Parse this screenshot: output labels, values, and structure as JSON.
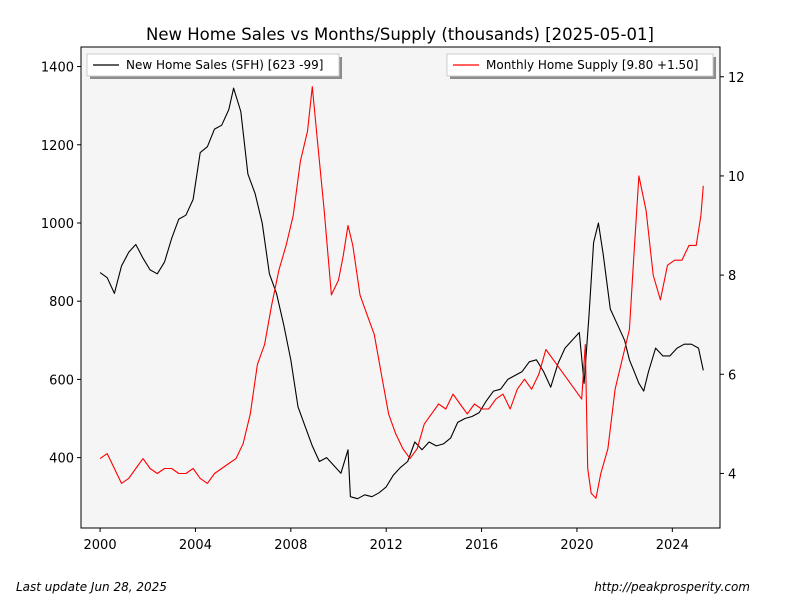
{
  "chart_data": {
    "type": "line",
    "title": "New Home Sales vs Months/Supply (thousands) [2025-05-01]",
    "xlim": [
      1999.2,
      2026.0
    ],
    "x_ticks": [
      2000,
      2004,
      2008,
      2012,
      2016,
      2020,
      2024
    ],
    "x_tick_labels": [
      "2000",
      "2004",
      "2008",
      "2012",
      "2016",
      "2020",
      "2024"
    ],
    "y_left": {
      "ylim": [
        220,
        1450
      ],
      "ticks": [
        400,
        600,
        800,
        1000,
        1200,
        1400
      ],
      "tick_labels": [
        "400",
        "600",
        "800",
        "1000",
        "1200",
        "1400"
      ]
    },
    "y_right": {
      "ylim": [
        2.9,
        12.6
      ],
      "ticks": [
        4,
        6,
        8,
        10,
        12
      ],
      "tick_labels": [
        "4",
        "6",
        "8",
        "10",
        "12"
      ]
    },
    "grid": false,
    "background": "#f5f5f5",
    "series": [
      {
        "name": "New Home Sales (SFH) [623 -99]",
        "axis": "left",
        "color": "#000000",
        "points": [
          [
            2000.0,
            873
          ],
          [
            2000.3,
            860
          ],
          [
            2000.6,
            820
          ],
          [
            2000.9,
            890
          ],
          [
            2001.2,
            925
          ],
          [
            2001.5,
            945
          ],
          [
            2001.8,
            910
          ],
          [
            2002.1,
            880
          ],
          [
            2002.4,
            870
          ],
          [
            2002.7,
            900
          ],
          [
            2003.0,
            960
          ],
          [
            2003.3,
            1010
          ],
          [
            2003.6,
            1020
          ],
          [
            2003.9,
            1060
          ],
          [
            2004.2,
            1180
          ],
          [
            2004.5,
            1195
          ],
          [
            2004.8,
            1240
          ],
          [
            2005.1,
            1250
          ],
          [
            2005.4,
            1290
          ],
          [
            2005.6,
            1345
          ],
          [
            2005.9,
            1285
          ],
          [
            2006.2,
            1125
          ],
          [
            2006.5,
            1075
          ],
          [
            2006.8,
            1000
          ],
          [
            2007.1,
            870
          ],
          [
            2007.4,
            820
          ],
          [
            2007.7,
            740
          ],
          [
            2008.0,
            650
          ],
          [
            2008.3,
            530
          ],
          [
            2008.6,
            480
          ],
          [
            2008.9,
            430
          ],
          [
            2009.2,
            390
          ],
          [
            2009.5,
            400
          ],
          [
            2009.8,
            380
          ],
          [
            2010.1,
            360
          ],
          [
            2010.4,
            420
          ],
          [
            2010.5,
            300
          ],
          [
            2010.8,
            295
          ],
          [
            2011.1,
            305
          ],
          [
            2011.4,
            300
          ],
          [
            2011.7,
            310
          ],
          [
            2012.0,
            325
          ],
          [
            2012.3,
            355
          ],
          [
            2012.6,
            375
          ],
          [
            2012.9,
            390
          ],
          [
            2013.2,
            440
          ],
          [
            2013.5,
            420
          ],
          [
            2013.8,
            440
          ],
          [
            2014.1,
            430
          ],
          [
            2014.4,
            435
          ],
          [
            2014.7,
            450
          ],
          [
            2015.0,
            490
          ],
          [
            2015.3,
            500
          ],
          [
            2015.6,
            505
          ],
          [
            2015.9,
            515
          ],
          [
            2016.2,
            545
          ],
          [
            2016.5,
            570
          ],
          [
            2016.8,
            575
          ],
          [
            2017.1,
            600
          ],
          [
            2017.4,
            610
          ],
          [
            2017.7,
            620
          ],
          [
            2018.0,
            645
          ],
          [
            2018.3,
            650
          ],
          [
            2018.6,
            620
          ],
          [
            2018.9,
            580
          ],
          [
            2019.2,
            640
          ],
          [
            2019.5,
            680
          ],
          [
            2019.8,
            700
          ],
          [
            2020.1,
            720
          ],
          [
            2020.3,
            590
          ],
          [
            2020.5,
            760
          ],
          [
            2020.7,
            950
          ],
          [
            2020.9,
            1000
          ],
          [
            2021.1,
            920
          ],
          [
            2021.4,
            780
          ],
          [
            2021.7,
            740
          ],
          [
            2022.0,
            700
          ],
          [
            2022.2,
            650
          ],
          [
            2022.4,
            620
          ],
          [
            2022.6,
            590
          ],
          [
            2022.8,
            570
          ],
          [
            2023.0,
            620
          ],
          [
            2023.3,
            680
          ],
          [
            2023.6,
            660
          ],
          [
            2023.9,
            660
          ],
          [
            2024.2,
            680
          ],
          [
            2024.5,
            690
          ],
          [
            2024.8,
            690
          ],
          [
            2025.1,
            680
          ],
          [
            2025.3,
            623
          ]
        ]
      },
      {
        "name": "Monthly Home Supply [9.80 +1.50]",
        "axis": "right",
        "color": "#ff0000",
        "points": [
          [
            2000.0,
            4.3
          ],
          [
            2000.3,
            4.4
          ],
          [
            2000.6,
            4.1
          ],
          [
            2000.9,
            3.8
          ],
          [
            2001.2,
            3.9
          ],
          [
            2001.5,
            4.1
          ],
          [
            2001.8,
            4.3
          ],
          [
            2002.1,
            4.1
          ],
          [
            2002.4,
            4.0
          ],
          [
            2002.7,
            4.1
          ],
          [
            2003.0,
            4.1
          ],
          [
            2003.3,
            4.0
          ],
          [
            2003.6,
            4.0
          ],
          [
            2003.9,
            4.1
          ],
          [
            2004.2,
            3.9
          ],
          [
            2004.5,
            3.8
          ],
          [
            2004.8,
            4.0
          ],
          [
            2005.1,
            4.1
          ],
          [
            2005.4,
            4.2
          ],
          [
            2005.7,
            4.3
          ],
          [
            2006.0,
            4.6
          ],
          [
            2006.3,
            5.2
          ],
          [
            2006.6,
            6.2
          ],
          [
            2006.9,
            6.6
          ],
          [
            2007.2,
            7.4
          ],
          [
            2007.5,
            8.1
          ],
          [
            2007.8,
            8.6
          ],
          [
            2008.1,
            9.2
          ],
          [
            2008.4,
            10.3
          ],
          [
            2008.7,
            10.9
          ],
          [
            2008.9,
            11.8
          ],
          [
            2009.1,
            10.8
          ],
          [
            2009.4,
            9.3
          ],
          [
            2009.7,
            7.6
          ],
          [
            2010.0,
            7.9
          ],
          [
            2010.2,
            8.4
          ],
          [
            2010.4,
            9.0
          ],
          [
            2010.6,
            8.6
          ],
          [
            2010.9,
            7.6
          ],
          [
            2011.2,
            7.2
          ],
          [
            2011.5,
            6.8
          ],
          [
            2011.8,
            6.0
          ],
          [
            2012.1,
            5.2
          ],
          [
            2012.4,
            4.8
          ],
          [
            2012.7,
            4.5
          ],
          [
            2013.0,
            4.3
          ],
          [
            2013.3,
            4.5
          ],
          [
            2013.6,
            5.0
          ],
          [
            2013.9,
            5.2
          ],
          [
            2014.2,
            5.4
          ],
          [
            2014.5,
            5.3
          ],
          [
            2014.8,
            5.6
          ],
          [
            2015.1,
            5.4
          ],
          [
            2015.4,
            5.2
          ],
          [
            2015.7,
            5.4
          ],
          [
            2016.0,
            5.3
          ],
          [
            2016.3,
            5.3
          ],
          [
            2016.6,
            5.5
          ],
          [
            2016.9,
            5.6
          ],
          [
            2017.2,
            5.3
          ],
          [
            2017.5,
            5.7
          ],
          [
            2017.8,
            5.9
          ],
          [
            2018.1,
            5.7
          ],
          [
            2018.4,
            6.0
          ],
          [
            2018.7,
            6.5
          ],
          [
            2019.0,
            6.3
          ],
          [
            2019.3,
            6.1
          ],
          [
            2019.6,
            5.9
          ],
          [
            2019.9,
            5.7
          ],
          [
            2020.2,
            5.5
          ],
          [
            2020.35,
            6.6
          ],
          [
            2020.45,
            4.1
          ],
          [
            2020.6,
            3.6
          ],
          [
            2020.8,
            3.5
          ],
          [
            2021.0,
            4.0
          ],
          [
            2021.3,
            4.5
          ],
          [
            2021.6,
            5.7
          ],
          [
            2021.9,
            6.3
          ],
          [
            2022.2,
            6.9
          ],
          [
            2022.4,
            8.5
          ],
          [
            2022.6,
            10.0
          ],
          [
            2022.9,
            9.3
          ],
          [
            2023.2,
            8.0
          ],
          [
            2023.5,
            7.5
          ],
          [
            2023.8,
            8.2
          ],
          [
            2024.1,
            8.3
          ],
          [
            2024.4,
            8.3
          ],
          [
            2024.7,
            8.6
          ],
          [
            2025.0,
            8.6
          ],
          [
            2025.2,
            9.2
          ],
          [
            2025.3,
            9.8
          ]
        ]
      }
    ],
    "legend": {
      "left_label": "New Home Sales (SFH) [623 -99]",
      "right_label": "Monthly Home Supply [9.80 +1.50]"
    }
  },
  "footer": {
    "left": "Last update Jun 28, 2025",
    "right": "http://peakprosperity.com"
  }
}
